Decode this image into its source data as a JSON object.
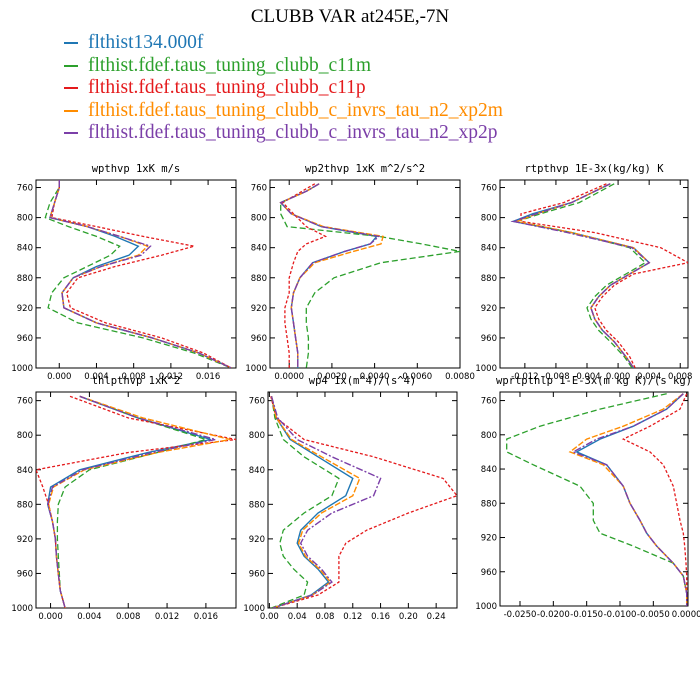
{
  "title": "CLUBB VAR at245E,-7N",
  "legend": {
    "entries": [
      {
        "label": "flthist134.000f",
        "color": "#1f77b4"
      },
      {
        "label": "flthist.fdef.taus_tuning_clubb_c11m",
        "color": "#2ca02c"
      },
      {
        "label": "flthist.fdef.taus_tuning_clubb_c11p",
        "color": "#e41a1c"
      },
      {
        "label": "flthist.fdef.taus_tuning_clubb_c_invrs_tau_n2_xp2m",
        "color": "#ff8c00"
      },
      {
        "label": "flthist.fdef.taus_tuning_clubb_c_invrs_tau_n2_xp2p",
        "color": "#7b3fa8"
      }
    ]
  },
  "chart_data": [
    {
      "type": "line",
      "title": "wpthvp   1xK m/s",
      "xticks": [
        "0.000",
        "0.004",
        "0.008",
        "0.012",
        "0.016"
      ],
      "xtick_values": [
        0,
        0.004,
        0.008,
        0.012,
        0.016
      ],
      "yticks": [
        "760",
        "800",
        "840",
        "880",
        "920",
        "960",
        "1000"
      ],
      "xlim": [
        -0.0025,
        0.019
      ],
      "ylim": [
        1000,
        750
      ],
      "levels": [
        750,
        760,
        780,
        800,
        812,
        825,
        838,
        850,
        865,
        880,
        900,
        920,
        940,
        960,
        980,
        1000
      ],
      "series": [
        {
          "name": "flthist134.000f",
          "values": [
            0,
            0,
            -0.0005,
            -0.001,
            0.003,
            0.006,
            0.0085,
            0.0075,
            0.004,
            0.0015,
            0.0003,
            0.0005,
            0.004,
            0.01,
            0.015,
            0.0185
          ]
        },
        {
          "name": "flthist.fdef.taus_tuning_clubb_c11m",
          "values": [
            0,
            0,
            -0.001,
            -0.0015,
            0.001,
            0.004,
            0.0065,
            0.0055,
            0.003,
            0.0005,
            -0.0008,
            -0.0012,
            0.002,
            0.009,
            0.0145,
            0.0185
          ]
        },
        {
          "name": "flthist.fdef.taus_tuning_clubb_c11p",
          "values": [
            0,
            0,
            -0.0005,
            -0.0008,
            0.004,
            0.009,
            0.0145,
            0.011,
            0.006,
            0.002,
            0.0008,
            0.0012,
            0.005,
            0.011,
            0.0155,
            0.0185
          ]
        },
        {
          "name": "flthist.fdef.taus_tuning_clubb_c_invrs_tau_n2_xp2m",
          "values": [
            0,
            0,
            -0.0005,
            -0.001,
            0.003,
            0.0065,
            0.0095,
            0.0085,
            0.0045,
            0.0015,
            0.0003,
            0.0005,
            0.004,
            0.01,
            0.015,
            0.0185
          ]
        },
        {
          "name": "flthist.fdef.taus_tuning_clubb_c_invrs_tau_n2_xp2p",
          "values": [
            0,
            0,
            -0.0005,
            -0.001,
            0.003,
            0.0065,
            0.0098,
            0.0088,
            0.0045,
            0.0015,
            0.0003,
            0.0005,
            0.004,
            0.01,
            0.015,
            0.0185
          ]
        }
      ]
    },
    {
      "type": "line",
      "title": "wp2thvp   1xK m^2/s^2",
      "xticks": [
        "0.0000",
        "0.0020",
        "0.0040",
        "0.0060",
        "0.0080"
      ],
      "xtick_values": [
        0,
        0.002,
        0.004,
        0.006,
        0.008
      ],
      "yticks": [
        "760",
        "800",
        "840",
        "880",
        "920",
        "960",
        "1000"
      ],
      "xlim": [
        -0.0009,
        0.008
      ],
      "ylim": [
        1000,
        750
      ],
      "levels": [
        755,
        765,
        780,
        795,
        812,
        825,
        835,
        845,
        860,
        880,
        900,
        920,
        940,
        960,
        980,
        1000
      ],
      "series": [
        {
          "name": "flthist134.000f",
          "values": [
            0.0014,
            0.0008,
            -0.0004,
            0.0001,
            0.0015,
            0.0041,
            0.0038,
            0.0026,
            0.0011,
            0.0005,
            0.0002,
            0.0001,
            0.0002,
            0.0003,
            0.0004,
            0.0004
          ]
        },
        {
          "name": "flthist.fdef.taus_tuning_clubb_c11m",
          "values": [
            0.0014,
            0.0008,
            -0.0004,
            -0.0004,
            -0.0001,
            0.0042,
            0.0062,
            0.008,
            0.0043,
            0.0021,
            0.0012,
            0.0008,
            0.0008,
            0.0009,
            0.0009,
            0.0008
          ]
        },
        {
          "name": "flthist.fdef.taus_tuning_clubb_c11p",
          "values": [
            0.0012,
            0.0006,
            -0.0003,
            0.0002,
            0.0008,
            0.0017,
            0.0008,
            0.0004,
            0.0002,
            0.0,
            0.0,
            -0.0002,
            -0.0002,
            -0.0001,
            0.0,
            0.0
          ]
        },
        {
          "name": "flthist.fdef.taus_tuning_clubb_c_invrs_tau_n2_xp2m",
          "values": [
            0.0014,
            0.0008,
            -0.0004,
            0.0001,
            0.0016,
            0.0044,
            0.0043,
            0.003,
            0.0012,
            0.0005,
            0.0002,
            0.0001,
            0.0002,
            0.0003,
            0.0004,
            0.0004
          ]
        },
        {
          "name": "flthist.fdef.taus_tuning_clubb_c_invrs_tau_n2_xp2p",
          "values": [
            0.0014,
            0.0008,
            -0.0004,
            0.0001,
            0.0015,
            0.0042,
            0.0038,
            0.0026,
            0.0011,
            0.0005,
            0.0002,
            0.0001,
            0.0002,
            0.0003,
            0.0004,
            0.0004
          ]
        }
      ]
    },
    {
      "type": "line",
      "title": "rtpthvp   1E-3x(kg/kg) K",
      "xticks": [
        "-0.012",
        "-0.008",
        "-0.004",
        "0.000",
        "0.004",
        "0.008"
      ],
      "xtick_values": [
        -0.012,
        -0.008,
        -0.004,
        0,
        0.004,
        0.008
      ],
      "yticks": [
        "760",
        "800",
        "840",
        "880",
        "920",
        "960",
        "1000"
      ],
      "xlim": [
        -0.0152,
        0.009
      ],
      "ylim": [
        1000,
        750
      ],
      "levels": [
        755,
        780,
        795,
        805,
        820,
        840,
        860,
        875,
        890,
        905,
        920,
        935,
        950,
        965,
        985,
        1000
      ],
      "series": [
        {
          "name": "flthist134.000f",
          "values": [
            -0.001,
            -0.006,
            -0.011,
            -0.0135,
            -0.006,
            0.002,
            0.004,
            0.0015,
            -0.001,
            -0.0025,
            -0.0035,
            -0.003,
            -0.002,
            -0.0005,
            0.001,
            0.002
          ]
        },
        {
          "name": "flthist.fdef.taus_tuning_clubb_c11m",
          "values": [
            -0.0005,
            -0.005,
            -0.01,
            -0.013,
            -0.006,
            0.0015,
            0.0035,
            0.001,
            -0.0015,
            -0.003,
            -0.004,
            -0.0035,
            -0.0025,
            -0.001,
            0.0008,
            0.0018
          ]
        },
        {
          "name": "flthist.fdef.taus_tuning_clubb_c11p",
          "values": [
            -0.0015,
            -0.007,
            -0.0125,
            -0.0125,
            -0.003,
            0.0055,
            0.009,
            0.002,
            -0.0005,
            -0.002,
            -0.003,
            -0.0025,
            -0.0015,
            0.0,
            0.0015,
            0.0022
          ]
        },
        {
          "name": "flthist.fdef.taus_tuning_clubb_c_invrs_tau_n2_xp2m",
          "values": [
            -0.001,
            -0.006,
            -0.0105,
            -0.013,
            -0.006,
            0.002,
            0.004,
            0.0015,
            -0.001,
            -0.0025,
            -0.0035,
            -0.003,
            -0.002,
            -0.0005,
            0.001,
            0.002
          ]
        },
        {
          "name": "flthist.fdef.taus_tuning_clubb_c_invrs_tau_n2_xp2p",
          "values": [
            -0.001,
            -0.006,
            -0.0105,
            -0.0135,
            -0.0065,
            0.0018,
            0.004,
            0.0015,
            -0.001,
            -0.0025,
            -0.0035,
            -0.003,
            -0.002,
            -0.0005,
            0.001,
            0.002
          ]
        }
      ]
    },
    {
      "type": "line",
      "title": "thlpthvp   1xK^2",
      "xticks": [
        "0.000",
        "0.004",
        "0.008",
        "0.012",
        "0.016"
      ],
      "xtick_values": [
        0,
        0.004,
        0.008,
        0.012,
        0.016
      ],
      "yticks": [
        "760",
        "800",
        "840",
        "880",
        "920",
        "960",
        "1000"
      ],
      "xlim": [
        -0.0015,
        0.0191
      ],
      "ylim": [
        1000,
        750
      ],
      "levels": [
        755,
        780,
        805,
        820,
        840,
        860,
        880,
        900,
        920,
        940,
        960,
        980,
        1000
      ],
      "series": [
        {
          "name": "flthist134.000f",
          "values": [
            0.003,
            0.009,
            0.0165,
            0.01,
            0.003,
            0.0,
            -0.0003,
            0.0002,
            0.0005,
            0.0006,
            0.0008,
            0.001,
            0.0015
          ]
        },
        {
          "name": "flthist.fdef.taus_tuning_clubb_c11m",
          "values": [
            0.003,
            0.009,
            0.016,
            0.011,
            0.004,
            0.0015,
            0.0008,
            0.0007,
            0.0007,
            0.0008,
            0.0009,
            0.001,
            0.0015
          ]
        },
        {
          "name": "flthist.fdef.taus_tuning_clubb_c11p",
          "values": [
            0.002,
            0.008,
            0.0191,
            0.008,
            -0.0015,
            -0.0008,
            -0.0002,
            0.0002,
            0.0005,
            0.0006,
            0.0008,
            0.001,
            0.0015
          ]
        },
        {
          "name": "flthist.fdef.taus_tuning_clubb_c_invrs_tau_n2_xp2m",
          "values": [
            0.003,
            0.0095,
            0.0185,
            0.011,
            0.0035,
            0.0003,
            -0.0002,
            0.0002,
            0.0005,
            0.0006,
            0.0008,
            0.001,
            0.0015
          ]
        },
        {
          "name": "flthist.fdef.taus_tuning_clubb_c_invrs_tau_n2_xp2p",
          "values": [
            0.003,
            0.009,
            0.017,
            0.0105,
            0.0033,
            0.0002,
            -0.0003,
            0.0002,
            0.0005,
            0.0006,
            0.0008,
            0.001,
            0.0015
          ]
        }
      ]
    },
    {
      "type": "line",
      "title": "wp4   1x(m^4)/(s^4)",
      "xticks": [
        "0.00",
        "0.04",
        "0.08",
        "0.12",
        "0.16",
        "0.20",
        "0.24"
      ],
      "xtick_values": [
        0,
        0.04,
        0.08,
        0.12,
        0.16,
        0.2,
        0.24
      ],
      "yticks": [
        "760",
        "800",
        "840",
        "880",
        "920",
        "960",
        "1000"
      ],
      "xlim": [
        -0.002,
        0.27
      ],
      "ylim": [
        1000,
        750
      ],
      "levels": [
        755,
        780,
        805,
        825,
        850,
        870,
        890,
        910,
        925,
        940,
        955,
        970,
        985,
        1000
      ],
      "series": [
        {
          "name": "flthist134.000f",
          "values": [
            0.003,
            0.01,
            0.03,
            0.07,
            0.12,
            0.11,
            0.07,
            0.045,
            0.04,
            0.05,
            0.07,
            0.085,
            0.06,
            0.005
          ]
        },
        {
          "name": "flthist.fdef.taus_tuning_clubb_c11m",
          "values": [
            0.003,
            0.008,
            0.02,
            0.05,
            0.1,
            0.09,
            0.05,
            0.02,
            0.015,
            0.02,
            0.035,
            0.055,
            0.05,
            0.003
          ]
        },
        {
          "name": "flthist.fdef.taus_tuning_clubb_c11p",
          "values": [
            0.002,
            0.01,
            0.05,
            0.15,
            0.25,
            0.27,
            0.2,
            0.14,
            0.11,
            0.1,
            0.1,
            0.1,
            0.07,
            0.005
          ]
        },
        {
          "name": "flthist.fdef.taus_tuning_clubb_c_invrs_tau_n2_xp2m",
          "values": [
            0.003,
            0.01,
            0.032,
            0.075,
            0.13,
            0.12,
            0.075,
            0.048,
            0.042,
            0.052,
            0.072,
            0.088,
            0.062,
            0.005
          ]
        },
        {
          "name": "flthist.fdef.taus_tuning_clubb_c_invrs_tau_n2_xp2p",
          "values": [
            0.003,
            0.012,
            0.04,
            0.09,
            0.16,
            0.15,
            0.09,
            0.055,
            0.045,
            0.055,
            0.075,
            0.09,
            0.062,
            0.005
          ]
        }
      ]
    },
    {
      "type": "line",
      "title": "wprtpthlp   1-E-3x(m kg K)/(s kg)",
      "xticks": [
        "-0.0250",
        "-0.0200",
        "-0.0150",
        "-0.0100",
        "-0.0050",
        "0.0000"
      ],
      "xtick_values": [
        -0.025,
        -0.02,
        -0.015,
        -0.01,
        -0.005,
        0
      ],
      "yticks": [
        "760",
        "800",
        "840",
        "880",
        "920",
        "960",
        "1000"
      ],
      "xlim": [
        -0.028,
        0.0002
      ],
      "ylim": [
        1000,
        750
      ],
      "levels": [
        752,
        770,
        790,
        805,
        820,
        835,
        860,
        880,
        900,
        915,
        930,
        950,
        965,
        985,
        1000
      ],
      "series": [
        {
          "name": "flthist134.000f",
          "values": [
            -0.0005,
            -0.003,
            -0.008,
            -0.013,
            -0.0165,
            -0.012,
            -0.0095,
            -0.0085,
            -0.007,
            -0.006,
            -0.0045,
            -0.002,
            -0.0005,
            0.0,
            0.0
          ]
        },
        {
          "name": "flthist.fdef.taus_tuning_clubb_c11m",
          "values": [
            -0.003,
            -0.013,
            -0.022,
            -0.027,
            -0.027,
            -0.023,
            -0.016,
            -0.014,
            -0.014,
            -0.013,
            -0.008,
            -0.002,
            -0.0005,
            0.0,
            0.0
          ]
        },
        {
          "name": "flthist.fdef.taus_tuning_clubb_c11p",
          "values": [
            0.0,
            -0.001,
            -0.0055,
            -0.0095,
            -0.0055,
            -0.0035,
            -0.002,
            -0.0015,
            -0.001,
            -0.0005,
            -0.0003,
            -0.0001,
            0.0,
            0.0,
            0.0
          ]
        },
        {
          "name": "flthist.fdef.taus_tuning_clubb_c_invrs_tau_n2_xp2m",
          "values": [
            -0.0005,
            -0.0035,
            -0.0095,
            -0.015,
            -0.0175,
            -0.0125,
            -0.0095,
            -0.0085,
            -0.007,
            -0.006,
            -0.0045,
            -0.002,
            -0.0005,
            0.0,
            0.0
          ]
        },
        {
          "name": "flthist.fdef.taus_tuning_clubb_c_invrs_tau_n2_xp2p",
          "values": [
            -0.0005,
            -0.003,
            -0.008,
            -0.0135,
            -0.017,
            -0.012,
            -0.0095,
            -0.0085,
            -0.007,
            -0.006,
            -0.0045,
            -0.002,
            -0.0005,
            0.0,
            0.0
          ]
        }
      ]
    }
  ]
}
